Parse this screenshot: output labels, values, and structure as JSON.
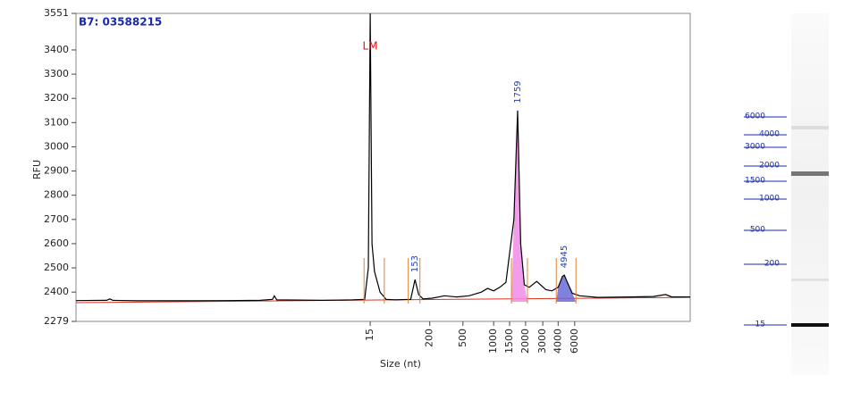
{
  "chart_data": {
    "type": "line",
    "title": "B7: 03588215",
    "y_label": "RFU",
    "x_label": "Size (nt)",
    "color": "#000000",
    "xlim": [
      0,
      100
    ],
    "ylim": [
      2279,
      3551
    ],
    "yticks": [
      2279,
      2400,
      2500,
      2600,
      2700,
      2800,
      2900,
      3000,
      3100,
      3200,
      3300,
      3400,
      3551
    ],
    "xticks": [
      {
        "value": 47.9,
        "label": "15"
      },
      {
        "value": 57.6,
        "label": "200"
      },
      {
        "value": 63.0,
        "label": "500"
      },
      {
        "value": 68.0,
        "label": "1000"
      },
      {
        "value": 70.6,
        "label": "1500"
      },
      {
        "value": 73.2,
        "label": "2000"
      },
      {
        "value": 76.0,
        "label": "3000"
      },
      {
        "value": 78.5,
        "label": "4000"
      },
      {
        "value": 81.2,
        "label": "6000"
      }
    ],
    "x": [
      0,
      5,
      5.5,
      6,
      10,
      20,
      30,
      32,
      32.3,
      32.7,
      40,
      45,
      47,
      47.6,
      47.9,
      48.2,
      48.6,
      49.5,
      50.5,
      52,
      54.5,
      55.2,
      55.8,
      56.5,
      58,
      60,
      62,
      64,
      66,
      67,
      68,
      69,
      70,
      71.3,
      71.9,
      72.4,
      73,
      73.8,
      75,
      76.5,
      77.5,
      78.5,
      79.2,
      79.5,
      80,
      80.8,
      82,
      85,
      90,
      94,
      96,
      97,
      100
    ],
    "values": [
      2365,
      2366,
      2372,
      2366,
      2364,
      2364,
      2366,
      2370,
      2385,
      2368,
      2366,
      2368,
      2370,
      2500,
      3551,
      2600,
      2485,
      2400,
      2370,
      2368,
      2370,
      2452,
      2390,
      2372,
      2375,
      2385,
      2380,
      2385,
      2400,
      2415,
      2405,
      2420,
      2440,
      2700,
      3150,
      2600,
      2430,
      2420,
      2444,
      2410,
      2405,
      2420,
      2465,
      2470,
      2440,
      2395,
      2385,
      2378,
      2380,
      2382,
      2390,
      2380,
      2380
    ],
    "peaks": [
      {
        "label": "LM",
        "x": 47.9,
        "start": 46.9,
        "end": 50.2,
        "label_color": "#e01010",
        "orientation": "horizontal"
      },
      {
        "label": "153",
        "x": 55.2,
        "start": 54.1,
        "end": 56.0,
        "label_color": "#2040c0",
        "orientation": "vertical"
      },
      {
        "label": "1759",
        "x": 71.9,
        "start": 70.9,
        "end": 73.5,
        "label_color": "#2040c0",
        "orientation": "vertical",
        "fill": "#f08ce8"
      },
      {
        "label": "4945",
        "x": 79.5,
        "start": 78.2,
        "end": 81.4,
        "label_color": "#2040c0",
        "orientation": "vertical",
        "fill": "#6a6ad8"
      }
    ],
    "ladder": [
      "6000",
      "4000",
      "3000",
      "2000",
      "1500",
      "1000",
      "500",
      "200",
      "15"
    ]
  }
}
